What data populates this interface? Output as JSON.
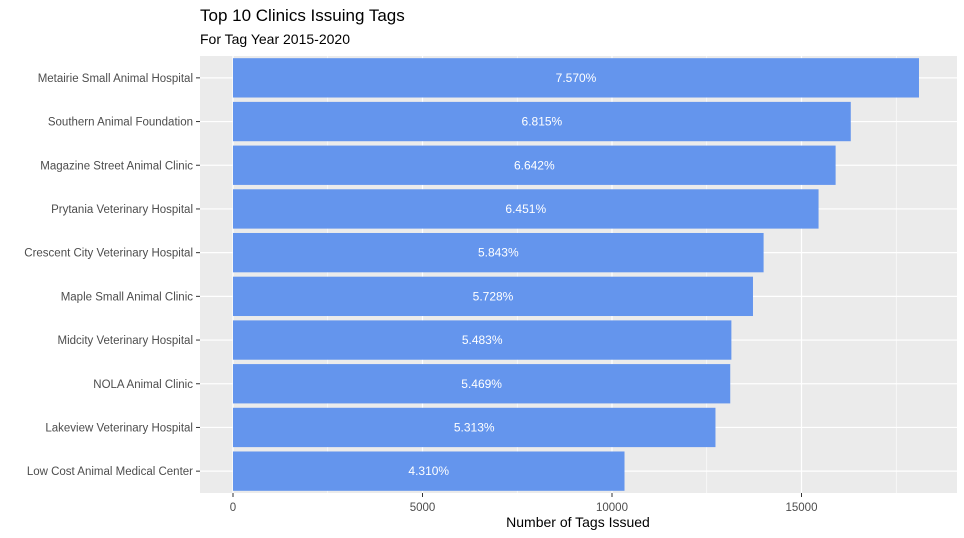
{
  "chart_data": {
    "type": "bar",
    "orientation": "horizontal",
    "title": "Top 10 Clinics Issuing Tags",
    "subtitle": "For Tag Year 2015-2020",
    "xlabel": "Number of Tags Issued",
    "ylabel": "",
    "xlim": [
      0,
      18600
    ],
    "xticks": [
      0,
      5000,
      10000,
      15000
    ],
    "xtick_labels": [
      "0",
      "5000",
      "10000",
      "15000"
    ],
    "grid": true,
    "bar_color": "#6495ED",
    "panel_color": "#EBEBEB",
    "grid_color": "#FFFFFF",
    "categories": [
      "Metairie Small Animal Hospital",
      "Southern Animal Foundation",
      "Magazine Street Animal Clinic",
      "Prytania Veterinary Hospital",
      "Crescent City Veterinary Hospital",
      "Maple Small Animal Clinic",
      "Midcity Veterinary Hospital",
      "NOLA Animal Clinic",
      "Lakeview Veterinary Hospital",
      "Low Cost Animal Medical Center"
    ],
    "values": [
      18100,
      16300,
      15900,
      15450,
      14000,
      13720,
      13150,
      13120,
      12730,
      10330
    ],
    "labels": [
      "7.570%",
      "6.815%",
      "6.642%",
      "6.451%",
      "5.843%",
      "5.728%",
      "5.483%",
      "5.469%",
      "5.313%",
      "4.310%"
    ]
  }
}
